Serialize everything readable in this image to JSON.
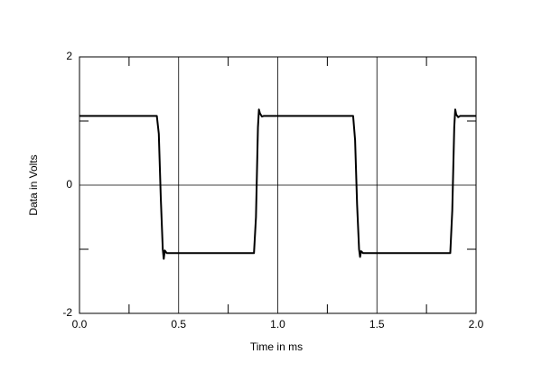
{
  "chart_data": {
    "type": "line",
    "x_label": "Time in ms",
    "y_label": "Data in Volts",
    "x": [
      0,
      0.39,
      0.4,
      0.41,
      0.42,
      0.425,
      0.43,
      0.44,
      0.88,
      0.89,
      0.9,
      0.905,
      0.91,
      0.92,
      0.93,
      1.38,
      1.39,
      1.4,
      1.41,
      1.415,
      1.42,
      1.43,
      1.87,
      1.88,
      1.89,
      1.895,
      1.9,
      1.91,
      1.92,
      2.0
    ],
    "values": [
      1.08,
      1.08,
      0.8,
      -0.2,
      -1.0,
      -1.15,
      -1.02,
      -1.06,
      -1.06,
      -0.5,
      0.9,
      1.18,
      1.12,
      1.07,
      1.08,
      1.08,
      0.7,
      -0.3,
      -1.0,
      -1.12,
      -1.03,
      -1.06,
      -1.06,
      -0.4,
      0.9,
      1.18,
      1.1,
      1.06,
      1.08,
      1.08
    ],
    "color": "#000000",
    "xlim": [
      0,
      2
    ],
    "ylim": [
      -2,
      2
    ],
    "xticks": [
      {
        "value": 0,
        "label": "0.0"
      },
      0.5,
      {
        "value": 1,
        "label": "1.0"
      },
      1.5,
      {
        "value": 2,
        "label": "2.0"
      }
    ],
    "yticks": [
      -2,
      0,
      2
    ],
    "minor_xticks": [
      0.25,
      0.75,
      1.25,
      1.75
    ],
    "minor_yticks": [
      -1,
      1
    ],
    "grid": true
  }
}
